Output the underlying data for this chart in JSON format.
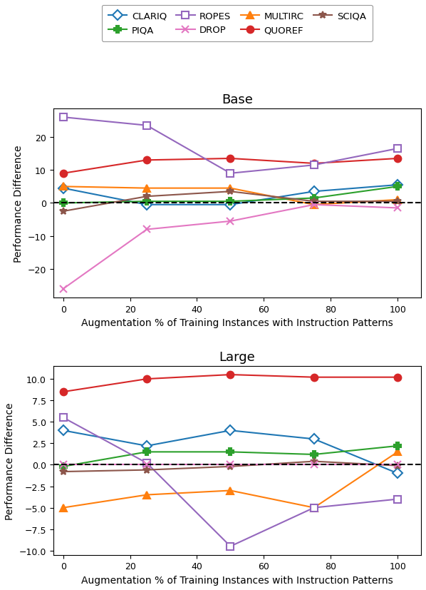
{
  "x": [
    0,
    25,
    50,
    75,
    100
  ],
  "base": {
    "CLARIQ": [
      4.5,
      -0.5,
      -0.5,
      3.5,
      5.5
    ],
    "MULTIRC": [
      5.0,
      4.5,
      4.5,
      -0.5,
      1.0
    ],
    "PIQA": [
      0.0,
      0.5,
      0.5,
      1.5,
      5.0
    ],
    "QUOREF": [
      9.0,
      13.0,
      13.5,
      12.0,
      13.5
    ],
    "ROPES": [
      26.0,
      23.5,
      9.0,
      11.5,
      16.5
    ],
    "SCIQA": [
      -2.5,
      2.0,
      3.5,
      0.5,
      0.5
    ],
    "DROP": [
      -26.0,
      -8.0,
      -5.5,
      -0.5,
      -1.5
    ]
  },
  "large": {
    "CLARIQ": [
      4.0,
      2.2,
      4.0,
      3.0,
      -1.0
    ],
    "MULTIRC": [
      -5.0,
      -3.5,
      -3.0,
      -5.0,
      1.5
    ],
    "PIQA": [
      -0.2,
      1.5,
      1.5,
      1.2,
      2.2
    ],
    "QUOREF": [
      8.5,
      10.0,
      10.5,
      10.2,
      10.2
    ],
    "ROPES": [
      5.5,
      0.2,
      -9.5,
      -5.0,
      -4.0
    ],
    "SCIQA": [
      -0.8,
      -0.6,
      -0.2,
      0.4,
      -0.1
    ],
    "DROP": [
      0,
      0,
      0,
      0,
      0
    ]
  },
  "colors": {
    "CLARIQ": "#1f77b4",
    "MULTIRC": "#ff7f0e",
    "PIQA": "#2ca02c",
    "QUOREF": "#d62728",
    "ROPES": "#9467bd",
    "SCIQA": "#8c564b",
    "DROP": "#e377c2"
  },
  "markers": {
    "CLARIQ": "D",
    "MULTIRC": "^",
    "PIQA": "P",
    "QUOREF": "o",
    "ROPES": "s",
    "SCIQA": "*",
    "DROP": "x"
  },
  "xlabel": "Augmentation % of Training Instances with Instruction Patterns",
  "ylabel": "Performance Difference",
  "title_base": "Base",
  "title_large": "Large",
  "legend_order": [
    "CLARIQ",
    "PIQA",
    "ROPES",
    "DROP",
    "MULTIRC",
    "QUOREF",
    "SCIQA"
  ],
  "xticks": [
    0,
    20,
    40,
    60,
    80,
    100
  ],
  "xlim": [
    -3,
    107
  ]
}
